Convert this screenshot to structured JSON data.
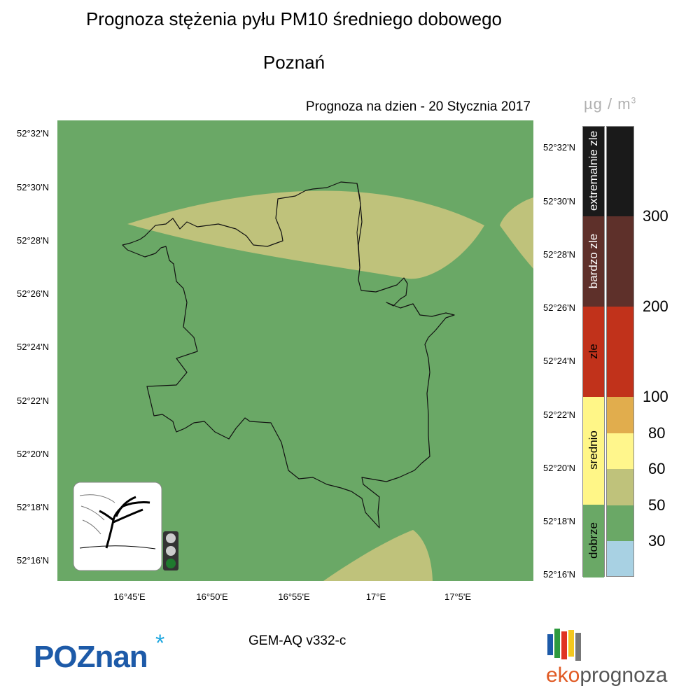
{
  "title": "Prognoza stężenia pyłu PM10 średniego dobowego",
  "subtitle": "Poznań",
  "forecast_date": "Prognoza na dzien -  20 Stycznia 2017",
  "lat_labels": [
    "52°32'N",
    "52°30'N",
    "52°28'N",
    "52°26'N",
    "52°24'N",
    "52°22'N",
    "52°20'N",
    "52°18'N",
    "52°16'N"
  ],
  "lon_labels": [
    "16°45'E",
    "16°50'E",
    "16°55'E",
    "17°E",
    "17°5'E"
  ],
  "model": "GEM-AQ v332-c",
  "unit": {
    "base": "µg / m",
    "exp": "3"
  },
  "legend": {
    "categories": [
      {
        "name": "extremalnie zle",
        "color": "#1a1a1a"
      },
      {
        "name": "bardzo zle",
        "color": "#5e302a"
      },
      {
        "name": "zle",
        "color": "#c1321b"
      },
      {
        "name": "srednio",
        "color": "#fff687"
      },
      {
        "name": "dobrze",
        "color": "#6aa866"
      }
    ],
    "scale_colors": [
      "#1a1a1a",
      "#5e302a",
      "#c1321b",
      "#e1ad4d",
      "#fff68c",
      "#bfc27b",
      "#6aa866",
      "#a8d1e3"
    ],
    "thresholds": [
      "300",
      "200",
      "100",
      "80",
      "60",
      "50",
      "30"
    ]
  },
  "map_colors": {
    "background": "#6aa866",
    "overlay": "#bfc27b",
    "boundary": "#111111"
  },
  "traffic_light": {
    "active": "green",
    "colors": {
      "off": "#cccccc",
      "green": "#1f7a2e",
      "housing": "#333333"
    }
  },
  "logos": {
    "poznan": "POZnan",
    "poznan_star": "*",
    "eko_a": "eko",
    "eko_b": "prognoza"
  },
  "icons": [
    "wind-tree-icon",
    "traffic-light-icon",
    "eko-bars-icon"
  ]
}
